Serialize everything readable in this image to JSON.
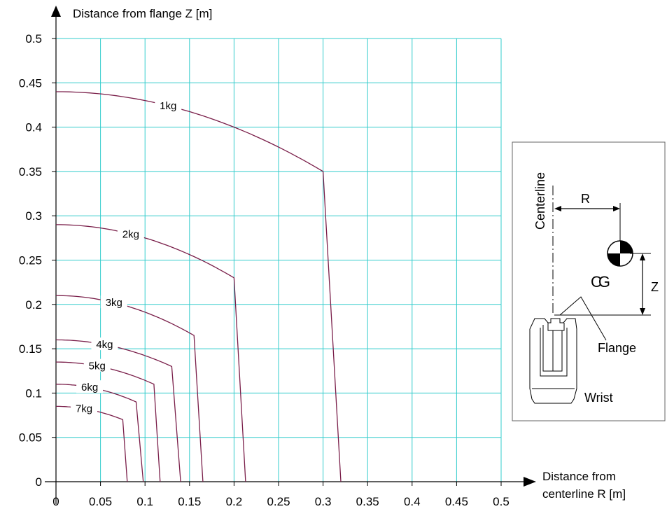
{
  "chart_data": {
    "type": "line",
    "ylabel": "Distance from flange Z  [m]",
    "xlabel_line1": "Distance from",
    "xlabel_line2": "centerline R  [m]",
    "xlim": [
      0,
      0.5
    ],
    "ylim": [
      0,
      0.5
    ],
    "x_ticks": [
      "0",
      "0.05",
      "0.1",
      "0.15",
      "0.2",
      "0.25",
      "0.3",
      "0.35",
      "0.4",
      "0.45",
      "0.5"
    ],
    "y_ticks": [
      "0",
      "0.05",
      "0.1",
      "0.15",
      "0.2",
      "0.25",
      "0.3",
      "0.35",
      "0.4",
      "0.45",
      "0.5"
    ],
    "grid": true,
    "colors": {
      "grid": "#33cccc",
      "curve": "#7a1f4a",
      "axis": "#000000"
    },
    "series": [
      {
        "name": "1kg",
        "z0": 0.44,
        "knee_r": 0.3,
        "knee_z": 0.35,
        "r_end": 0.32
      },
      {
        "name": "2kg",
        "z0": 0.29,
        "knee_r": 0.2,
        "knee_z": 0.23,
        "r_end": 0.213
      },
      {
        "name": "3kg",
        "z0": 0.21,
        "knee_r": 0.155,
        "knee_z": 0.165,
        "r_end": 0.165
      },
      {
        "name": "4kg",
        "z0": 0.16,
        "knee_r": 0.13,
        "knee_z": 0.13,
        "r_end": 0.14
      },
      {
        "name": "5kg",
        "z0": 0.135,
        "knee_r": 0.11,
        "knee_z": 0.11,
        "r_end": 0.117
      },
      {
        "name": "6kg",
        "z0": 0.11,
        "knee_r": 0.09,
        "knee_z": 0.09,
        "r_end": 0.098
      },
      {
        "name": "7kg",
        "z0": 0.085,
        "knee_r": 0.075,
        "knee_z": 0.07,
        "r_end": 0.08
      }
    ]
  },
  "inset": {
    "centerline": "Centerline",
    "r_label": "R",
    "z_label": "Z",
    "cg_label": "CG",
    "flange_label": "Flange",
    "wrist_label": "Wrist"
  }
}
